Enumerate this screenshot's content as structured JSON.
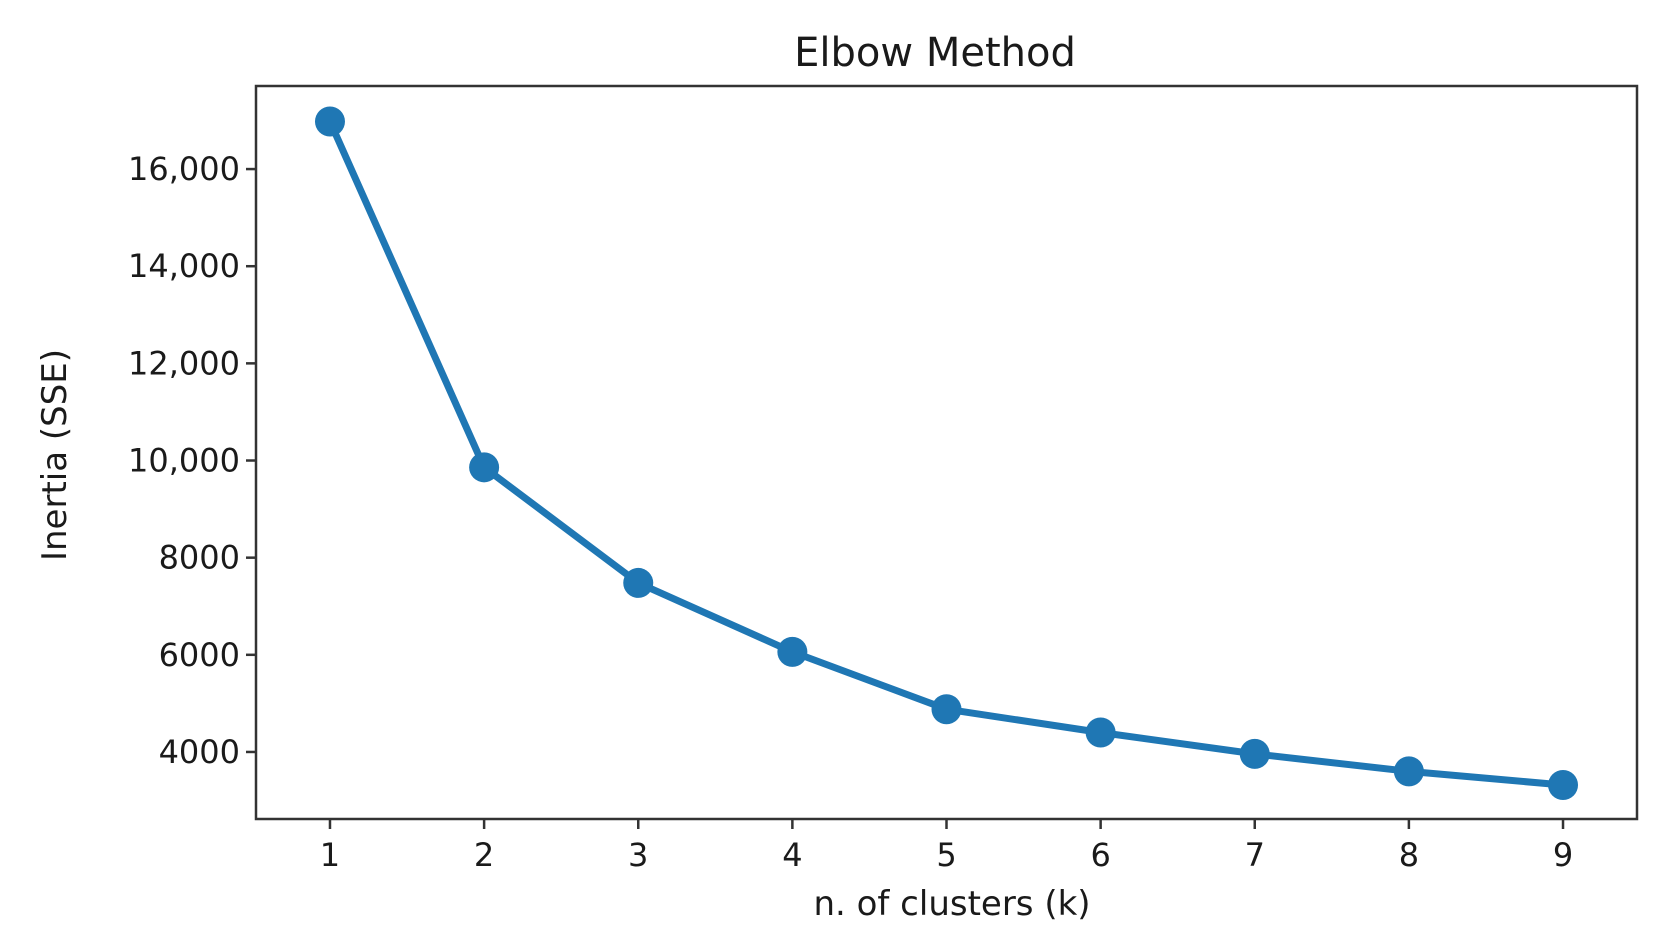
{
  "chart_data": {
    "type": "line",
    "title": "Elbow Method",
    "xlabel": "n. of clusters (k)",
    "ylabel": "Inertia (SSE)",
    "x": [
      1,
      2,
      3,
      4,
      5,
      6,
      7,
      8,
      9
    ],
    "series": [
      {
        "values": [
          16980,
          9860,
          7480,
          6060,
          4880,
          4400,
          3960,
          3600,
          3320
        ],
        "color": "#1f77b4"
      }
    ],
    "xticks": [
      1,
      2,
      3,
      4,
      5,
      6,
      7,
      8,
      9
    ],
    "xtick_labels": [
      "1",
      "2",
      "3",
      "4",
      "5",
      "6",
      "7",
      "8",
      "9"
    ],
    "yticks": [
      4000,
      6000,
      8000,
      10000,
      12000,
      14000,
      16000
    ],
    "ytick_labels": [
      "4000",
      "6000",
      "8000",
      "10,000",
      "12,000",
      "14,000",
      "16,000"
    ],
    "xlim": [
      0.52,
      9.48
    ],
    "ylim": [
      2620,
      17710
    ],
    "grid": false,
    "legend": "none"
  }
}
